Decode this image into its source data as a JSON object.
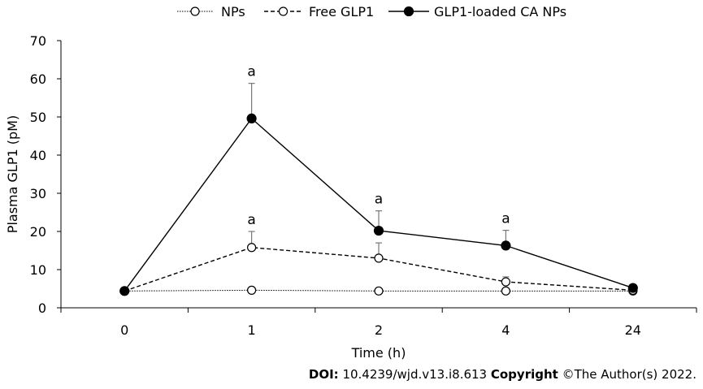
{
  "chart_data": {
    "type": "line",
    "categories": [
      "0",
      "1",
      "2",
      "4",
      "24"
    ],
    "xlabel": "Time (h)",
    "ylabel": "Plasma GLP1 (pM)",
    "ylim": [
      0,
      70
    ],
    "yticks": [
      0,
      10,
      20,
      30,
      40,
      50,
      60,
      70
    ],
    "grid": false,
    "legend_position": "top",
    "series": [
      {
        "name": "NPs",
        "values": [
          4.4,
          4.6,
          4.4,
          4.4,
          4.4
        ],
        "errors": [
          0,
          0,
          0,
          0,
          0
        ],
        "line_style": "dotted",
        "marker": "open-circle",
        "color": "#000000"
      },
      {
        "name": "Free GLP1",
        "values": [
          4.4,
          15.8,
          13.0,
          6.8,
          4.6
        ],
        "errors": [
          0,
          4.2,
          4.0,
          1.3,
          0
        ],
        "line_style": "dashed",
        "marker": "open-circle",
        "color": "#000000"
      },
      {
        "name": "GLP1-loaded CA NPs",
        "values": [
          4.4,
          49.6,
          20.2,
          16.3,
          5.2
        ],
        "errors": [
          0,
          9.2,
          5.2,
          4.0,
          0
        ],
        "line_style": "solid",
        "marker": "filled-circle",
        "color": "#000000"
      }
    ],
    "annotations": [
      {
        "text": "a",
        "category": "1",
        "series": "GLP1-loaded CA NPs"
      },
      {
        "text": "a",
        "category": "1",
        "series": "Free GLP1"
      },
      {
        "text": "a",
        "category": "2",
        "series": "GLP1-loaded CA NPs"
      },
      {
        "text": "a",
        "category": "4",
        "series": "GLP1-loaded CA NPs"
      }
    ]
  },
  "footer": {
    "doi_label": "DOI:",
    "doi_value": " 10.4239/wjd.v13.i8.613 ",
    "copyright_label": "Copyright",
    "copyright_value": " ©The Author(s) 2022."
  }
}
